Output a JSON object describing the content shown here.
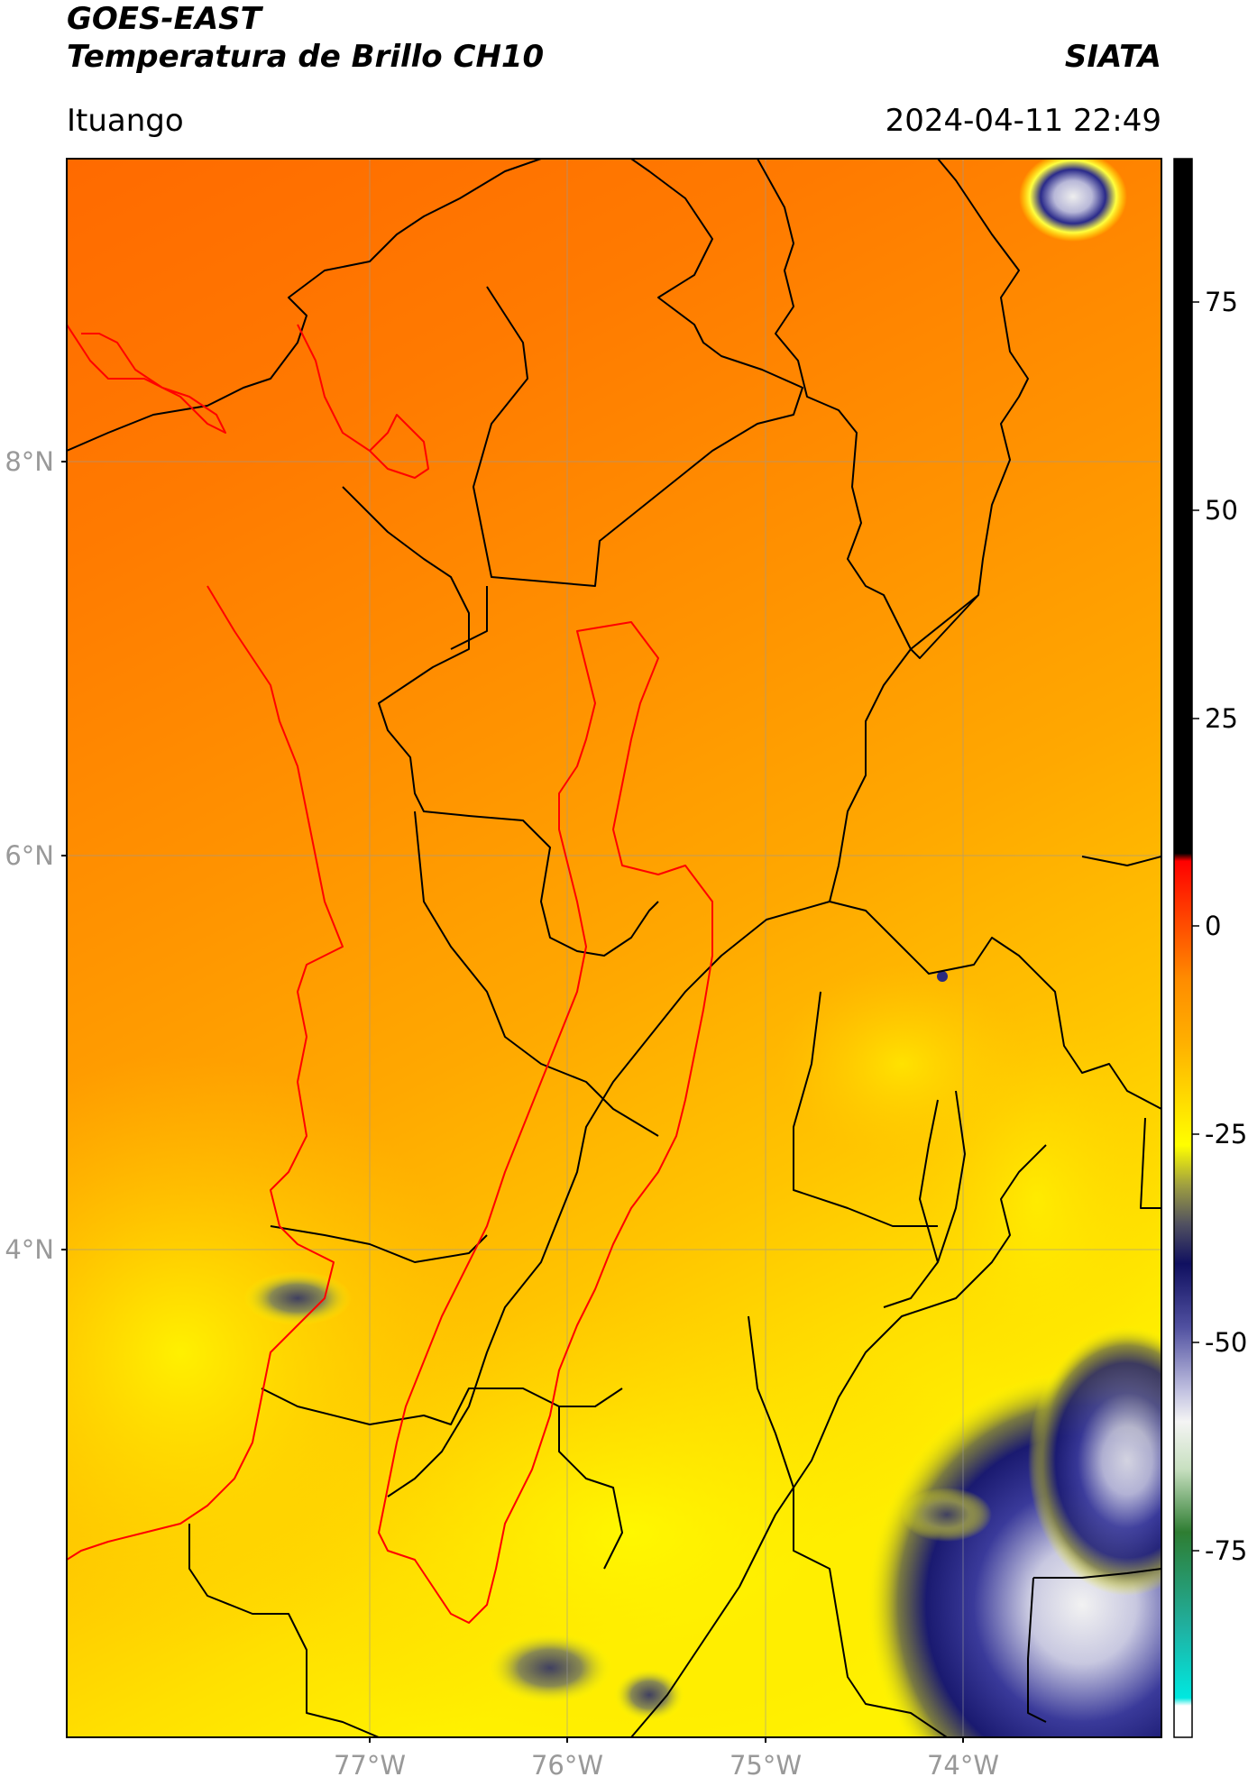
{
  "header": {
    "satellite": "GOES-EAST",
    "product": "Temperatura de Brillo CH10",
    "organization": "SIATA",
    "region": "Ituango",
    "timestamp": "2024-04-11 22:49"
  },
  "map": {
    "lat_ticks": [
      "8°N",
      "6°N",
      "4°N"
    ],
    "lon_ticks": [
      "77°W",
      "76°W",
      "75°W",
      "74°W"
    ],
    "extent": {
      "lon_min": -78.55,
      "lon_max": -73.0,
      "lat_min": 2.05,
      "lat_max": 9.55
    }
  },
  "colorbar": {
    "ticks": [
      "75",
      "50",
      "25",
      "0",
      "-25",
      "-50",
      "-75"
    ],
    "range": [
      -90,
      90
    ],
    "colors": {
      "warm_black": "#000000",
      "red": "#ff0000",
      "orange": "#ff8800",
      "yellow": "#ffff00",
      "olive": "#7a7a40",
      "navy": "#1a1a80",
      "white": "#f0f0f0",
      "green": "#2e7d32",
      "cyan": "#00e0d0"
    }
  },
  "colors": {
    "department_border": "#000000",
    "watershed_border": "#ff0000"
  }
}
